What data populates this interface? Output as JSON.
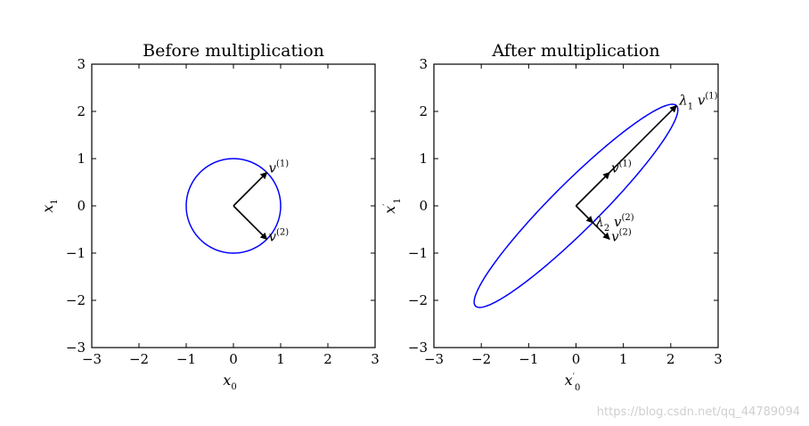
{
  "watermark": "https://blog.csdn.net/qq_44789094",
  "chart_data": [
    {
      "type": "line",
      "title": "Before multiplication",
      "xlabel": "x",
      "xlabel_sub": "0",
      "ylabel": "x",
      "ylabel_sub": "1",
      "xlim": [
        -3,
        3
      ],
      "ylim": [
        -3,
        3
      ],
      "xticks": [
        -3,
        -2,
        -1,
        0,
        1,
        2,
        3
      ],
      "yticks": [
        -3,
        -2,
        -1,
        0,
        1,
        2,
        3
      ],
      "curve": {
        "kind": "ellipse",
        "color": "#0000ff",
        "semi_major": 1,
        "semi_minor": 1,
        "angle_deg": 0
      },
      "vectors": [
        {
          "x": 0.707,
          "y": 0.707,
          "label": "v",
          "label_sup": "(1)",
          "label_prefix": "",
          "label_prefix_sub": ""
        },
        {
          "x": 0.707,
          "y": -0.707,
          "label": "v",
          "label_sup": "(2)",
          "label_prefix": "",
          "label_prefix_sub": ""
        }
      ]
    },
    {
      "type": "line",
      "title": "After multiplication",
      "xlabel": "x",
      "xlabel_sub": "0",
      "xlabel_prime": "′",
      "ylabel": "x",
      "ylabel_sub": "1",
      "ylabel_prime": "′",
      "xlim": [
        -3,
        3
      ],
      "ylim": [
        -3,
        3
      ],
      "xticks": [
        -3,
        -2,
        -1,
        0,
        1,
        2,
        3
      ],
      "yticks": [
        -3,
        -2,
        -1,
        0,
        1,
        2,
        3
      ],
      "curve": {
        "kind": "ellipse",
        "color": "#0000ff",
        "semi_major": 3.0,
        "semi_minor": 0.5,
        "angle_deg": 45
      },
      "vectors": [
        {
          "x": 0.707,
          "y": 0.707,
          "label": "v",
          "label_sup": "(1)",
          "label_prefix": "",
          "label_prefix_sub": ""
        },
        {
          "x": 0.707,
          "y": -0.707,
          "label": "v",
          "label_sup": "(2)",
          "label_prefix": "",
          "label_prefix_sub": ""
        },
        {
          "x": 2.12,
          "y": 2.12,
          "label": "v",
          "label_sup": "(1)",
          "label_prefix": "λ",
          "label_prefix_sub": "1"
        },
        {
          "x": 0.354,
          "y": -0.354,
          "label": "v",
          "label_sup": "(2)",
          "label_prefix": "λ",
          "label_prefix_sub": "2"
        }
      ]
    }
  ]
}
